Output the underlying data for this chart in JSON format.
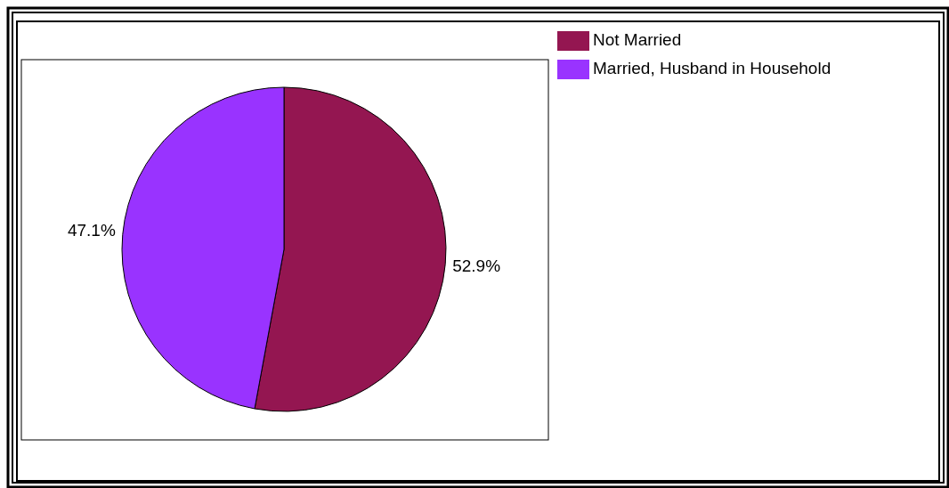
{
  "chart_data": {
    "type": "pie",
    "categories": [
      "Not Married",
      "Married, Husband in Household"
    ],
    "values": [
      52.9,
      47.1
    ],
    "colors": [
      "#941651",
      "#9933ff"
    ],
    "value_labels": [
      "52.9%",
      "47.1%"
    ],
    "legend": "top right"
  }
}
